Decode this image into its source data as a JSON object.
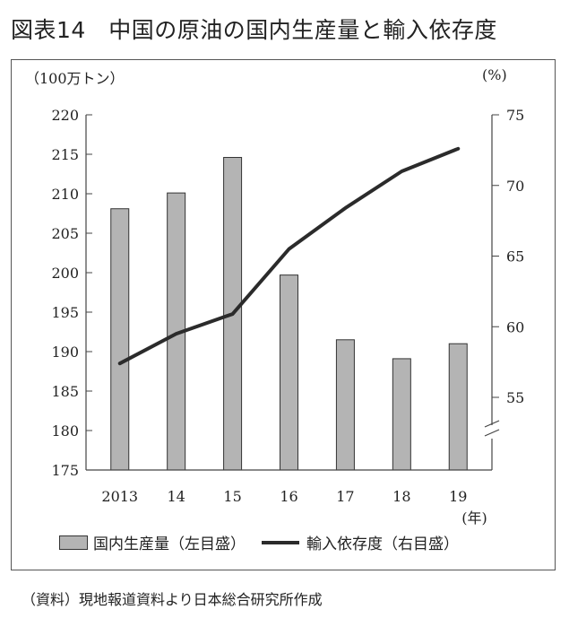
{
  "title": "図表14　中国の原油の国内生産量と輸入依存度",
  "units": {
    "left": "（100万トン）",
    "right": "(%)"
  },
  "legend": {
    "bar": "国内生産量（左目盛）",
    "line": "輸入依存度（右目盛）"
  },
  "source": "（資料）現地報道資料より日本総合研究所作成",
  "colors": {
    "bar": "#b4b4b4",
    "bar_border": "#333333",
    "line": "#2b2b2b",
    "axis": "#444444"
  },
  "chart_data": {
    "type": "bar",
    "title": "中国の原油の国内生産量と輸入依存度",
    "xlabel": "(年)",
    "ylabel": "（100万トン）",
    "y2label": "(%)",
    "categories": [
      "2013",
      "14",
      "15",
      "16",
      "17",
      "18",
      "19"
    ],
    "ylim": [
      175,
      220
    ],
    "yticks": [
      175,
      180,
      185,
      190,
      195,
      200,
      205,
      210,
      215,
      220
    ],
    "y2lim": [
      55,
      75
    ],
    "y2ticks": [
      55,
      60,
      65,
      70,
      75
    ],
    "axis_break": "right",
    "series": [
      {
        "name": "国内生産量（左目盛）",
        "type": "bar",
        "axis": "left",
        "values": [
          208.1,
          210.1,
          214.6,
          199.7,
          191.5,
          189.1,
          191.0
        ]
      },
      {
        "name": "輸入依存度（右目盛）",
        "type": "line",
        "axis": "right",
        "values": [
          57.4,
          59.5,
          60.9,
          65.5,
          68.4,
          71.0,
          72.6
        ]
      }
    ]
  }
}
